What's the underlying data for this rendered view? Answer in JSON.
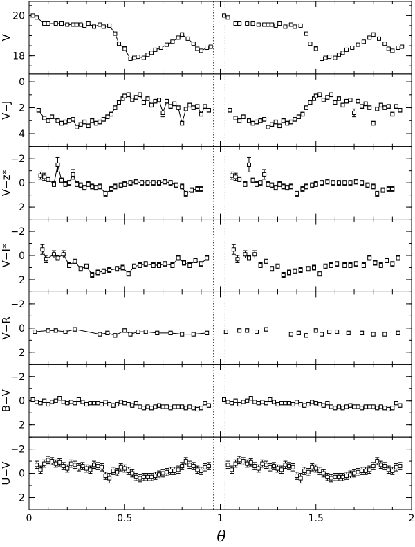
{
  "chart_data": {
    "type": "scatter",
    "xlabel": "θ",
    "xlim": [
      0,
      2
    ],
    "x_ticks": [
      "0",
      "0.5",
      "1",
      "1.5",
      "2"
    ],
    "x_tick_values": [
      0,
      0.5,
      1,
      1.5,
      2
    ],
    "vertical_dotted_lines_x": [
      0.965,
      1.025
    ],
    "note": "Data for theta in [0,1] is repeated at theta+1 (right half, unconnected). Left half points are joined by a line.",
    "panels": [
      {
        "ylabel": "V",
        "ylim": [
          20.7,
          17.1
        ],
        "y_ticks": [
          "18",
          "20"
        ],
        "y_tick_values": [
          18,
          20
        ],
        "connected": true,
        "x": [
          0.02,
          0.04,
          0.08,
          0.1,
          0.14,
          0.17,
          0.2,
          0.23,
          0.25,
          0.27,
          0.29,
          0.31,
          0.34,
          0.37,
          0.39,
          0.42,
          0.45,
          0.47,
          0.5,
          0.53,
          0.55,
          0.57,
          0.6,
          0.62,
          0.64,
          0.66,
          0.69,
          0.72,
          0.75,
          0.78,
          0.8,
          0.83,
          0.86,
          0.88,
          0.9,
          0.93,
          0.95
        ],
        "y": [
          20.0,
          19.9,
          19.6,
          19.6,
          19.6,
          19.6,
          19.55,
          19.55,
          19.55,
          19.55,
          19.5,
          19.6,
          19.45,
          19.55,
          19.45,
          19.5,
          19.1,
          18.6,
          18.35,
          17.85,
          17.9,
          17.95,
          17.9,
          18.05,
          18.15,
          18.3,
          18.4,
          18.55,
          18.7,
          18.9,
          19.05,
          18.85,
          18.6,
          18.35,
          18.25,
          18.4,
          18.45
        ],
        "err": [
          0.05,
          0.05,
          0.05,
          0.05,
          0.05,
          0.05,
          0.05,
          0.05,
          0.05,
          0.05,
          0.05,
          0.08,
          0.05,
          0.05,
          0.05,
          0.05,
          0.05,
          0.05,
          0.1,
          0.05,
          0.05,
          0.05,
          0.05,
          0.05,
          0.05,
          0.05,
          0.05,
          0.05,
          0.05,
          0.05,
          0.1,
          0.05,
          0.05,
          0.05,
          0.05,
          0.05,
          0.05
        ]
      },
      {
        "ylabel": "V−J",
        "ylim": [
          -0.6,
          5.0
        ],
        "y_ticks": [
          "0",
          "2",
          "4"
        ],
        "y_tick_values": [
          0,
          2,
          4
        ],
        "connected": true,
        "x": [
          0.05,
          0.08,
          0.1,
          0.12,
          0.15,
          0.17,
          0.19,
          0.21,
          0.23,
          0.25,
          0.27,
          0.29,
          0.31,
          0.33,
          0.35,
          0.37,
          0.39,
          0.41,
          0.43,
          0.45,
          0.47,
          0.49,
          0.5,
          0.52,
          0.54,
          0.56,
          0.58,
          0.6,
          0.62,
          0.64,
          0.66,
          0.68,
          0.7,
          0.72,
          0.74,
          0.76,
          0.78,
          0.8,
          0.82,
          0.84,
          0.86,
          0.88,
          0.9,
          0.92,
          0.94
        ],
        "y": [
          2.2,
          2.8,
          3.0,
          2.7,
          3.0,
          3.2,
          3.1,
          3.0,
          2.9,
          3.5,
          3.3,
          3.1,
          3.4,
          3.0,
          3.2,
          3.1,
          2.9,
          2.7,
          2.5,
          2.0,
          1.6,
          1.3,
          1.1,
          1.0,
          1.4,
          1.2,
          1.0,
          1.6,
          1.3,
          1.8,
          1.5,
          1.4,
          2.4,
          1.5,
          1.9,
          1.7,
          2.0,
          3.2,
          2.1,
          1.8,
          2.0,
          1.9,
          2.5,
          1.9,
          2.2
        ],
        "err": [
          0.15,
          0.15,
          0.15,
          0.15,
          0.15,
          0.15,
          0.15,
          0.15,
          0.15,
          0.15,
          0.15,
          0.15,
          0.15,
          0.15,
          0.15,
          0.15,
          0.15,
          0.15,
          0.15,
          0.15,
          0.15,
          0.15,
          0.15,
          0.15,
          0.15,
          0.15,
          0.15,
          0.15,
          0.15,
          0.15,
          0.15,
          0.15,
          0.3,
          0.15,
          0.15,
          0.15,
          0.15,
          0.15,
          0.15,
          0.15,
          0.15,
          0.15,
          0.15,
          0.15,
          0.15
        ]
      },
      {
        "ylabel": "V−z*",
        "ylim": [
          -3.0,
          3.0
        ],
        "y_ticks": [
          "−2",
          "0",
          "2"
        ],
        "y_tick_values": [
          -2,
          0,
          2
        ],
        "connected": true,
        "x": [
          0.06,
          0.08,
          0.1,
          0.13,
          0.15,
          0.17,
          0.19,
          0.21,
          0.23,
          0.25,
          0.27,
          0.29,
          0.31,
          0.33,
          0.35,
          0.37,
          0.4,
          0.43,
          0.45,
          0.48,
          0.5,
          0.53,
          0.56,
          0.59,
          0.62,
          0.65,
          0.68,
          0.71,
          0.74,
          0.77,
          0.8,
          0.82,
          0.85,
          0.88,
          0.9
        ],
        "y": [
          -0.6,
          -0.5,
          -0.3,
          0.1,
          -1.5,
          -0.2,
          0.1,
          0.0,
          -0.7,
          0.1,
          0.2,
          0.4,
          0.1,
          0.3,
          0.4,
          0.3,
          0.9,
          0.5,
          0.3,
          0.2,
          0.1,
          0.0,
          -0.1,
          0.0,
          0.0,
          0.0,
          0.0,
          -0.1,
          0.0,
          0.2,
          0.3,
          0.9,
          0.6,
          0.5,
          0.5
        ],
        "err": [
          0.3,
          0.3,
          0.2,
          0.2,
          0.6,
          0.2,
          0.2,
          0.2,
          0.4,
          0.2,
          0.2,
          0.2,
          0.2,
          0.2,
          0.2,
          0.2,
          0.2,
          0.2,
          0.2,
          0.2,
          0.2,
          0.2,
          0.2,
          0.2,
          0.2,
          0.2,
          0.2,
          0.2,
          0.2,
          0.2,
          0.2,
          0.2,
          0.2,
          0.2,
          0.2
        ]
      },
      {
        "ylabel": "V−I*",
        "ylim": [
          -3.0,
          3.0
        ],
        "y_ticks": [
          "−2",
          "0",
          "2"
        ],
        "y_tick_values": [
          -2,
          0,
          2
        ],
        "connected": true,
        "x": [
          0.07,
          0.09,
          0.13,
          0.15,
          0.18,
          0.21,
          0.24,
          0.27,
          0.3,
          0.33,
          0.36,
          0.39,
          0.42,
          0.46,
          0.49,
          0.52,
          0.55,
          0.58,
          0.61,
          0.65,
          0.68,
          0.71,
          0.75,
          0.78,
          0.81,
          0.84,
          0.87,
          0.9,
          0.93
        ],
        "y": [
          -0.5,
          0.3,
          -0.1,
          0.2,
          -0.1,
          0.8,
          0.5,
          1.1,
          0.9,
          1.6,
          1.4,
          1.3,
          1.2,
          1.1,
          1.0,
          1.5,
          0.9,
          0.8,
          0.7,
          0.8,
          0.8,
          0.7,
          0.8,
          0.2,
          0.6,
          0.8,
          0.4,
          0.7,
          0.2
        ],
        "err": [
          0.4,
          0.3,
          0.3,
          0.2,
          0.3,
          0.2,
          0.2,
          0.2,
          0.2,
          0.2,
          0.2,
          0.2,
          0.2,
          0.2,
          0.2,
          0.2,
          0.2,
          0.2,
          0.2,
          0.2,
          0.2,
          0.2,
          0.2,
          0.2,
          0.2,
          0.2,
          0.2,
          0.2,
          0.2
        ]
      },
      {
        "ylabel": "V−R",
        "ylim": [
          -3.0,
          3.0
        ],
        "y_ticks": [
          "−2",
          "0",
          "2"
        ],
        "y_tick_values": [
          -2,
          0,
          2
        ],
        "connected": true,
        "x": [
          0.03,
          0.1,
          0.14,
          0.19,
          0.24,
          0.37,
          0.41,
          0.45,
          0.5,
          0.53,
          0.57,
          0.61,
          0.67,
          0.74,
          0.8,
          0.86,
          0.93
        ],
        "y": [
          0.3,
          0.2,
          0.2,
          0.3,
          0.1,
          0.5,
          0.4,
          0.6,
          0.2,
          0.5,
          0.3,
          0.3,
          0.4,
          0.4,
          0.5,
          0.5,
          0.4
        ],
        "err": [
          0.15,
          0.15,
          0.15,
          0.15,
          0.15,
          0.15,
          0.15,
          0.15,
          0.15,
          0.15,
          0.15,
          0.15,
          0.15,
          0.15,
          0.15,
          0.15,
          0.15
        ]
      },
      {
        "ylabel": "B−V",
        "ylim": [
          -3.0,
          3.0
        ],
        "y_ticks": [
          "−2",
          "0",
          "2"
        ],
        "y_tick_values": [
          -2,
          0,
          2
        ],
        "connected": true,
        "x": [
          0.02,
          0.04,
          0.06,
          0.08,
          0.1,
          0.12,
          0.14,
          0.16,
          0.18,
          0.2,
          0.22,
          0.24,
          0.26,
          0.28,
          0.3,
          0.32,
          0.34,
          0.36,
          0.38,
          0.4,
          0.42,
          0.44,
          0.46,
          0.48,
          0.5,
          0.52,
          0.54,
          0.56,
          0.58,
          0.6,
          0.62,
          0.64,
          0.66,
          0.68,
          0.7,
          0.72,
          0.74,
          0.76,
          0.78,
          0.8,
          0.82,
          0.84,
          0.86,
          0.88,
          0.9,
          0.92,
          0.94
        ],
        "y": [
          -0.1,
          0.1,
          0.2,
          0.0,
          0.3,
          0.1,
          0.0,
          -0.2,
          0.1,
          0.2,
          0.1,
          0.2,
          -0.1,
          0.1,
          0.3,
          0.2,
          0.2,
          0.2,
          0.3,
          0.1,
          0.3,
          0.4,
          0.3,
          0.1,
          0.2,
          0.3,
          0.4,
          0.2,
          0.5,
          0.6,
          0.5,
          0.6,
          0.5,
          0.4,
          0.5,
          0.5,
          0.6,
          0.5,
          0.5,
          0.5,
          0.6,
          0.5,
          0.6,
          0.7,
          0.6,
          0.2,
          0.4
        ],
        "err": [
          0.15,
          0.15,
          0.15,
          0.15,
          0.15,
          0.15,
          0.15,
          0.15,
          0.15,
          0.15,
          0.15,
          0.15,
          0.15,
          0.15,
          0.15,
          0.15,
          0.15,
          0.15,
          0.15,
          0.15,
          0.15,
          0.15,
          0.15,
          0.15,
          0.15,
          0.15,
          0.15,
          0.15,
          0.15,
          0.15,
          0.15,
          0.15,
          0.15,
          0.15,
          0.15,
          0.15,
          0.15,
          0.15,
          0.15,
          0.15,
          0.15,
          0.15,
          0.15,
          0.15,
          0.15,
          0.15,
          0.15
        ]
      },
      {
        "ylabel": "U−V",
        "ylim": [
          -3.0,
          3.0
        ],
        "y_ticks": [
          "−2",
          "0",
          "2"
        ],
        "y_tick_values": [
          -2,
          0,
          2
        ],
        "connected": true,
        "x": [
          0.04,
          0.06,
          0.08,
          0.1,
          0.12,
          0.14,
          0.16,
          0.18,
          0.2,
          0.22,
          0.24,
          0.26,
          0.28,
          0.3,
          0.32,
          0.34,
          0.36,
          0.38,
          0.4,
          0.42,
          0.44,
          0.46,
          0.48,
          0.5,
          0.52,
          0.54,
          0.56,
          0.58,
          0.6,
          0.62,
          0.64,
          0.66,
          0.68,
          0.7,
          0.72,
          0.74,
          0.76,
          0.78,
          0.8,
          0.82,
          0.84,
          0.86,
          0.88,
          0.9,
          0.92,
          0.94
        ],
        "y": [
          -0.7,
          -0.3,
          -0.8,
          -1.1,
          -1.0,
          -0.8,
          -0.9,
          -0.6,
          -0.4,
          -0.8,
          -0.7,
          -0.5,
          -0.6,
          -0.4,
          -0.3,
          -0.7,
          -0.6,
          -0.5,
          0.2,
          0.4,
          -0.2,
          -0.1,
          -0.5,
          -0.4,
          -0.2,
          0.0,
          0.3,
          0.4,
          0.3,
          0.3,
          0.3,
          0.2,
          0.1,
          0.0,
          -0.1,
          -0.2,
          -0.2,
          -0.3,
          -0.6,
          -1.0,
          -0.7,
          -0.6,
          -0.3,
          -0.2,
          -0.5,
          -0.6
        ],
        "err": [
          0.3,
          0.3,
          0.3,
          0.3,
          0.3,
          0.3,
          0.3,
          0.3,
          0.3,
          0.3,
          0.3,
          0.3,
          0.3,
          0.3,
          0.3,
          0.3,
          0.3,
          0.3,
          0.3,
          0.4,
          0.3,
          0.3,
          0.3,
          0.3,
          0.3,
          0.3,
          0.3,
          0.3,
          0.3,
          0.3,
          0.3,
          0.3,
          0.3,
          0.3,
          0.3,
          0.3,
          0.3,
          0.3,
          0.3,
          0.3,
          0.3,
          0.3,
          0.3,
          0.3,
          0.3,
          0.3
        ]
      }
    ]
  }
}
